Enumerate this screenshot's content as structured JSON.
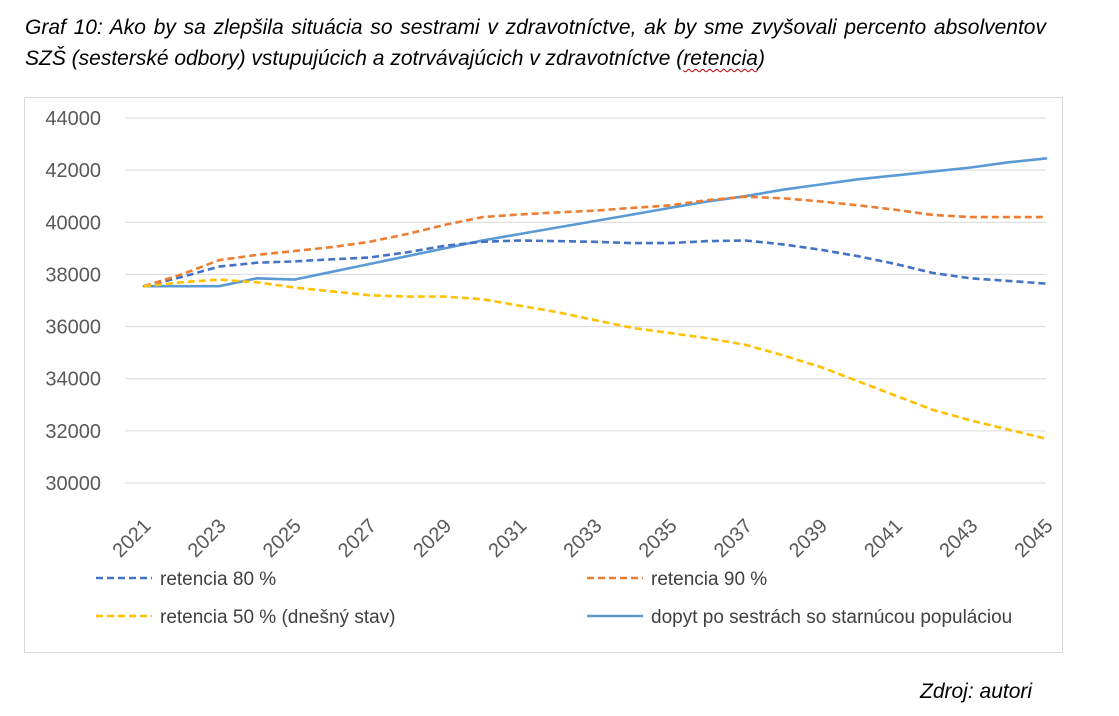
{
  "caption": {
    "text": "Graf 10: Ako by sa zlepšila situácia so sestrami v zdravotníctve, ak by sme zvyšovali percento absolventov SZŠ (sesterské odbory) vstupujúcich a zotrvávajúcich v zdravotníctve (",
    "underlined_word": "retencia",
    "close": ")"
  },
  "source": "Zdroj: autori",
  "chart_data": {
    "type": "line",
    "x": [
      2021,
      2022,
      2023,
      2024,
      2025,
      2026,
      2027,
      2028,
      2029,
      2030,
      2031,
      2032,
      2033,
      2034,
      2035,
      2036,
      2037,
      2038,
      2039,
      2040,
      2041,
      2042,
      2043,
      2044,
      2045
    ],
    "x_tick_labels": [
      "2021",
      "2023",
      "2025",
      "2027",
      "2029",
      "2031",
      "2033",
      "2035",
      "2037",
      "2039",
      "2041",
      "2043",
      "2045"
    ],
    "y_ticks": [
      30000,
      32000,
      34000,
      36000,
      38000,
      40000,
      42000,
      44000
    ],
    "ylim": [
      30000,
      44000
    ],
    "grid": "horizontal",
    "legend_position": "bottom",
    "series": [
      {
        "name": "retencia 80 %",
        "color": "#4472c4",
        "dash": "dashed",
        "values": [
          37550,
          37900,
          38300,
          38450,
          38500,
          38580,
          38650,
          38850,
          39100,
          39250,
          39300,
          39280,
          39250,
          39200,
          39200,
          39280,
          39300,
          39150,
          38950,
          38700,
          38400,
          38050,
          37850,
          37750,
          37650
        ]
      },
      {
        "name": "retencia 90 %",
        "color": "#ed7d31",
        "dash": "dashed",
        "values": [
          37550,
          38000,
          38550,
          38750,
          38900,
          39050,
          39250,
          39550,
          39900,
          40200,
          40300,
          40380,
          40450,
          40550,
          40650,
          40850,
          40980,
          40920,
          40800,
          40650,
          40480,
          40280,
          40200,
          40200,
          40200
        ]
      },
      {
        "name": "retencia 50 % (dnešný stav)",
        "color": "#ffc000",
        "dash": "dashed",
        "values": [
          37550,
          37700,
          37800,
          37700,
          37500,
          37350,
          37200,
          37150,
          37150,
          37050,
          36800,
          36550,
          36250,
          35950,
          35750,
          35550,
          35300,
          34900,
          34450,
          33900,
          33350,
          32800,
          32400,
          32050,
          31700
        ]
      },
      {
        "name": "dopyt po sestrách so starnúcou populáciou",
        "color": "#5b9bd5",
        "dash": "solid",
        "values": [
          37550,
          37550,
          37550,
          37850,
          37800,
          38100,
          38400,
          38700,
          39000,
          39300,
          39550,
          39800,
          40050,
          40300,
          40550,
          40800,
          41000,
          41250,
          41450,
          41650,
          41800,
          41950,
          42100,
          42300,
          42450
        ]
      }
    ]
  }
}
